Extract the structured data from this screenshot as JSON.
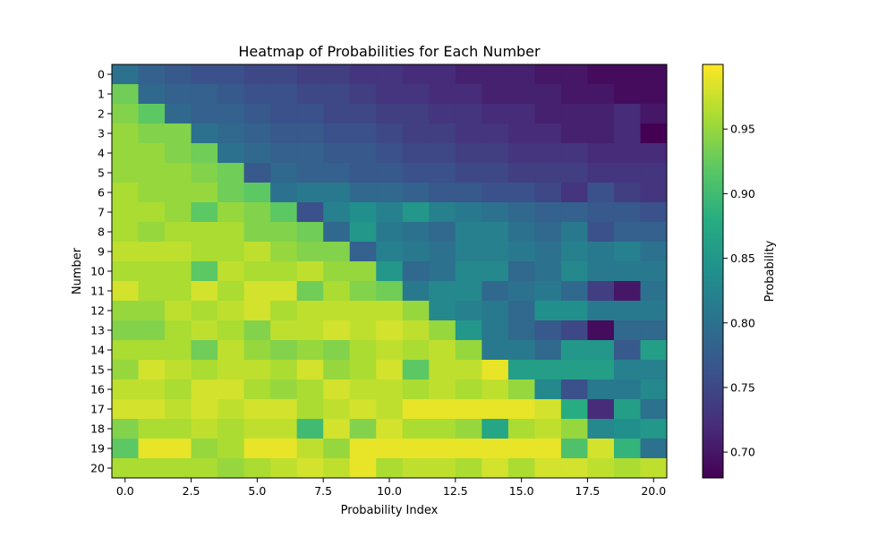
{
  "chart_data": {
    "type": "heatmap",
    "title": "Heatmap of Probabilities for Each Number",
    "xlabel": "Probability Index",
    "ylabel": "Number",
    "x_ticks": [
      "0.0",
      "2.5",
      "5.0",
      "7.5",
      "10.0",
      "12.5",
      "15.0",
      "17.5",
      "20.0"
    ],
    "x_tick_values": [
      0,
      2.5,
      5,
      7.5,
      10,
      12.5,
      15,
      17.5,
      20
    ],
    "y_ticks": [
      "0",
      "1",
      "2",
      "3",
      "4",
      "5",
      "6",
      "7",
      "8",
      "9",
      "10",
      "11",
      "12",
      "13",
      "14",
      "15",
      "16",
      "17",
      "18",
      "19",
      "20"
    ],
    "colormap": "viridis",
    "colorbar": {
      "label": "Probability",
      "min": 0.68,
      "max": 1.0,
      "ticks": [
        0.7,
        0.75,
        0.8,
        0.85,
        0.9,
        0.95
      ],
      "tick_labels": [
        "0.70",
        "0.75",
        "0.80",
        "0.85",
        "0.90",
        "0.95"
      ]
    },
    "values": [
      [
        0.8,
        0.78,
        0.77,
        0.76,
        0.76,
        0.75,
        0.75,
        0.74,
        0.74,
        0.73,
        0.73,
        0.72,
        0.72,
        0.71,
        0.71,
        0.71,
        0.7,
        0.7,
        0.69,
        0.69,
        0.69
      ],
      [
        0.93,
        0.79,
        0.78,
        0.78,
        0.77,
        0.76,
        0.76,
        0.75,
        0.75,
        0.74,
        0.73,
        0.73,
        0.72,
        0.72,
        0.71,
        0.71,
        0.71,
        0.7,
        0.7,
        0.69,
        0.69
      ],
      [
        0.94,
        0.92,
        0.79,
        0.78,
        0.78,
        0.77,
        0.76,
        0.76,
        0.75,
        0.75,
        0.74,
        0.74,
        0.73,
        0.73,
        0.72,
        0.72,
        0.71,
        0.71,
        0.71,
        0.72,
        0.7
      ],
      [
        0.95,
        0.94,
        0.94,
        0.8,
        0.79,
        0.78,
        0.77,
        0.77,
        0.76,
        0.76,
        0.75,
        0.74,
        0.74,
        0.73,
        0.73,
        0.72,
        0.72,
        0.71,
        0.71,
        0.72,
        0.68
      ],
      [
        0.95,
        0.95,
        0.94,
        0.93,
        0.8,
        0.79,
        0.78,
        0.78,
        0.77,
        0.77,
        0.76,
        0.75,
        0.75,
        0.74,
        0.74,
        0.73,
        0.73,
        0.73,
        0.72,
        0.72,
        0.72
      ],
      [
        0.95,
        0.95,
        0.95,
        0.94,
        0.93,
        0.77,
        0.79,
        0.78,
        0.78,
        0.77,
        0.77,
        0.76,
        0.76,
        0.75,
        0.75,
        0.74,
        0.74,
        0.74,
        0.73,
        0.73,
        0.73
      ],
      [
        0.96,
        0.95,
        0.95,
        0.95,
        0.93,
        0.92,
        0.8,
        0.81,
        0.81,
        0.79,
        0.79,
        0.78,
        0.77,
        0.77,
        0.76,
        0.76,
        0.75,
        0.73,
        0.76,
        0.74,
        0.73
      ],
      [
        0.96,
        0.96,
        0.95,
        0.92,
        0.95,
        0.94,
        0.92,
        0.76,
        0.82,
        0.84,
        0.82,
        0.85,
        0.82,
        0.81,
        0.8,
        0.79,
        0.78,
        0.78,
        0.77,
        0.77,
        0.76
      ],
      [
        0.96,
        0.95,
        0.96,
        0.96,
        0.96,
        0.94,
        0.94,
        0.93,
        0.79,
        0.85,
        0.81,
        0.8,
        0.79,
        0.82,
        0.82,
        0.8,
        0.79,
        0.81,
        0.76,
        0.78,
        0.78
      ],
      [
        0.97,
        0.97,
        0.97,
        0.96,
        0.96,
        0.97,
        0.95,
        0.94,
        0.94,
        0.78,
        0.82,
        0.81,
        0.8,
        0.82,
        0.82,
        0.81,
        0.8,
        0.82,
        0.81,
        0.82,
        0.8
      ],
      [
        0.96,
        0.96,
        0.96,
        0.92,
        0.97,
        0.96,
        0.96,
        0.97,
        0.95,
        0.95,
        0.85,
        0.79,
        0.8,
        0.83,
        0.83,
        0.79,
        0.8,
        0.83,
        0.81,
        0.81,
        0.81
      ],
      [
        0.98,
        0.96,
        0.96,
        0.98,
        0.96,
        0.98,
        0.98,
        0.93,
        0.96,
        0.94,
        0.93,
        0.81,
        0.83,
        0.83,
        0.79,
        0.8,
        0.81,
        0.79,
        0.74,
        0.7,
        0.8
      ],
      [
        0.95,
        0.95,
        0.97,
        0.96,
        0.97,
        0.98,
        0.96,
        0.97,
        0.97,
        0.97,
        0.97,
        0.95,
        0.83,
        0.82,
        0.81,
        0.79,
        0.84,
        0.84,
        0.81,
        0.81,
        0.81
      ],
      [
        0.94,
        0.94,
        0.96,
        0.97,
        0.96,
        0.94,
        0.97,
        0.97,
        0.98,
        0.97,
        0.98,
        0.97,
        0.95,
        0.85,
        0.81,
        0.79,
        0.77,
        0.75,
        0.69,
        0.79,
        0.79
      ],
      [
        0.96,
        0.96,
        0.96,
        0.93,
        0.97,
        0.95,
        0.94,
        0.95,
        0.94,
        0.96,
        0.97,
        0.96,
        0.97,
        0.95,
        0.81,
        0.81,
        0.79,
        0.85,
        0.85,
        0.77,
        0.86
      ],
      [
        0.95,
        0.98,
        0.97,
        0.96,
        0.97,
        0.97,
        0.96,
        0.98,
        0.95,
        0.96,
        0.98,
        0.92,
        0.97,
        0.97,
        0.99,
        0.86,
        0.86,
        0.86,
        0.86,
        0.82,
        0.82
      ],
      [
        0.97,
        0.97,
        0.96,
        0.98,
        0.98,
        0.96,
        0.95,
        0.96,
        0.98,
        0.97,
        0.97,
        0.96,
        0.97,
        0.96,
        0.97,
        0.95,
        0.83,
        0.76,
        0.81,
        0.81,
        0.83
      ],
      [
        0.98,
        0.98,
        0.97,
        0.98,
        0.97,
        0.98,
        0.98,
        0.96,
        0.97,
        0.98,
        0.97,
        0.99,
        0.99,
        0.99,
        0.99,
        0.99,
        0.98,
        0.88,
        0.72,
        0.86,
        0.8
      ],
      [
        0.94,
        0.96,
        0.96,
        0.97,
        0.96,
        0.97,
        0.97,
        0.9,
        0.98,
        0.94,
        0.98,
        0.96,
        0.96,
        0.95,
        0.87,
        0.96,
        0.97,
        0.95,
        0.83,
        0.84,
        0.85
      ],
      [
        0.92,
        0.99,
        0.99,
        0.95,
        0.96,
        0.99,
        0.99,
        0.97,
        0.95,
        0.99,
        0.99,
        0.99,
        0.99,
        0.99,
        0.99,
        0.99,
        0.99,
        0.91,
        0.98,
        0.89,
        0.8
      ],
      [
        0.96,
        0.96,
        0.96,
        0.96,
        0.95,
        0.96,
        0.97,
        0.98,
        0.97,
        0.99,
        0.96,
        0.97,
        0.97,
        0.96,
        0.98,
        0.96,
        0.98,
        0.98,
        0.97,
        0.96,
        0.97
      ]
    ]
  }
}
